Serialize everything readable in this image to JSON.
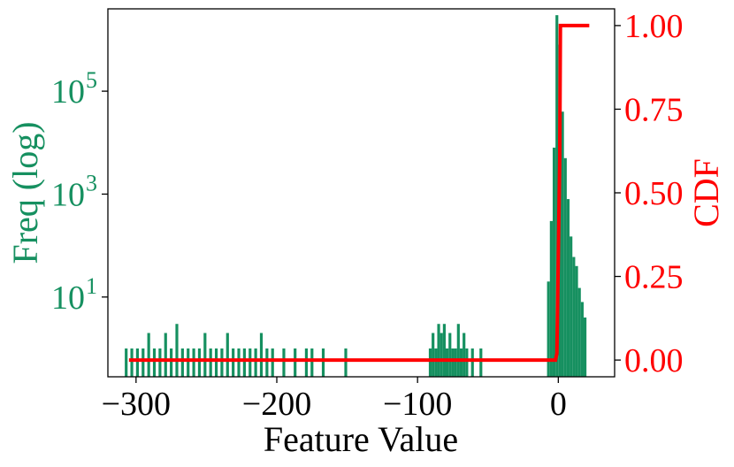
{
  "chart_data": {
    "type": "bar",
    "xlabel": "Feature Value",
    "ylabel_left": "Freq (log)",
    "ylabel_right": "CDF",
    "x_range": [
      -320,
      40
    ],
    "x_ticks": [
      {
        "value": -300,
        "label": "−300"
      },
      {
        "value": -200,
        "label": "−200"
      },
      {
        "value": -100,
        "label": "−100"
      },
      {
        "value": 0,
        "label": "0"
      }
    ],
    "y_left_scale": "log",
    "y_left_range_exp": [
      -0.55,
      6.6
    ],
    "y_left_ticks": [
      {
        "exp": 1,
        "base": "10",
        "sup": "1"
      },
      {
        "exp": 3,
        "base": "10",
        "sup": "3"
      },
      {
        "exp": 5,
        "base": "10",
        "sup": "5"
      }
    ],
    "y_right_range": [
      -0.05,
      1.05
    ],
    "y_right_ticks": [
      {
        "value": 0.0,
        "label": "0.00"
      },
      {
        "value": 0.25,
        "label": "0.25"
      },
      {
        "value": 0.5,
        "label": "0.50"
      },
      {
        "value": 0.75,
        "label": "0.75"
      },
      {
        "value": 1.0,
        "label": "1.00"
      }
    ],
    "grid": false,
    "colors": {
      "histogram": "#169060",
      "cdf": "#ff0000",
      "axes": "#000000"
    },
    "histogram": {
      "name": "Freq",
      "bin_edges_x": [
        -308,
        -306,
        -304,
        -302,
        -300,
        -298,
        -296,
        -294,
        -292,
        -290,
        -288,
        -286,
        -284,
        -282,
        -280,
        -278,
        -276,
        -274,
        -272,
        -270,
        -268,
        -266,
        -264,
        -262,
        -260,
        -258,
        -256,
        -254,
        -252,
        -250,
        -248,
        -246,
        -244,
        -242,
        -240,
        -238,
        -236,
        -234,
        -232,
        -230,
        -228,
        -226,
        -224,
        -222,
        -220,
        -218,
        -216,
        -214,
        -212,
        -210,
        -208,
        -206,
        -204,
        -202,
        -200,
        -198,
        -196,
        -194,
        -192,
        -190,
        -188,
        -186,
        -184,
        -182,
        -180,
        -178,
        -176,
        -174,
        -172,
        -170,
        -168,
        -166,
        -164,
        -162,
        -160,
        -158,
        -156,
        -154,
        -152,
        -150,
        -148,
        -146,
        -144,
        -142,
        -140,
        -138,
        -136,
        -134,
        -132,
        -130,
        -128,
        -126,
        -124,
        -122,
        -120,
        -118,
        -116,
        -114,
        -112,
        -110,
        -108,
        -106,
        -104,
        -102,
        -100,
        -98,
        -96,
        -94,
        -92,
        -90,
        -88,
        -86,
        -84,
        -82,
        -80,
        -78,
        -76,
        -74,
        -72,
        -70,
        -68,
        -66,
        -64,
        -62,
        -60,
        -58,
        -56,
        -54,
        -52,
        -50,
        -48,
        -46,
        -44,
        -42,
        -40,
        -38,
        -36,
        -34,
        -32,
        -30,
        -28,
        -26,
        -24,
        -22,
        -20,
        -18,
        -16,
        -14,
        -12,
        -10,
        -8,
        -6,
        -4,
        -2,
        0,
        2,
        4,
        6,
        8,
        10,
        12,
        14,
        16,
        18,
        20,
        22
      ],
      "counts": [
        1,
        0,
        1,
        0,
        1,
        0,
        1,
        0,
        2,
        0,
        1,
        0,
        1,
        0,
        2,
        0,
        1,
        0,
        3,
        0,
        1,
        0,
        1,
        0,
        1,
        0,
        1,
        0,
        2,
        0,
        1,
        0,
        1,
        0,
        1,
        0,
        2,
        0,
        1,
        0,
        1,
        0,
        1,
        0,
        1,
        0,
        1,
        0,
        2,
        0,
        1,
        0,
        1,
        0,
        0,
        0,
        1,
        0,
        0,
        0,
        1,
        0,
        0,
        0,
        1,
        0,
        1,
        0,
        0,
        0,
        1,
        0,
        0,
        0,
        0,
        0,
        0,
        0,
        1,
        0,
        0,
        0,
        0,
        0,
        0,
        0,
        0,
        0,
        0,
        0,
        0,
        0,
        0,
        0,
        0,
        0,
        0,
        0,
        0,
        0,
        0,
        0,
        0,
        0,
        0,
        0,
        0,
        0,
        1,
        2,
        1,
        3,
        2,
        3,
        1,
        2,
        1,
        1,
        3,
        1,
        2,
        1,
        0,
        1,
        0,
        0,
        1,
        0,
        0,
        0,
        0,
        0,
        0,
        0,
        0,
        0,
        0,
        0,
        0,
        0,
        0,
        0,
        0,
        0,
        0,
        0,
        0,
        0,
        0,
        0,
        20,
        300,
        8000,
        3000000,
        800000,
        40000,
        5000,
        800,
        150,
        60,
        40,
        15,
        8,
        4
      ]
    },
    "cdf_series": {
      "name": "CDF",
      "x": [
        -305,
        -2,
        -1,
        1,
        1.5,
        22
      ],
      "y": [
        0.0,
        0.0,
        0.02,
        0.6,
        1.0,
        1.0
      ]
    }
  }
}
